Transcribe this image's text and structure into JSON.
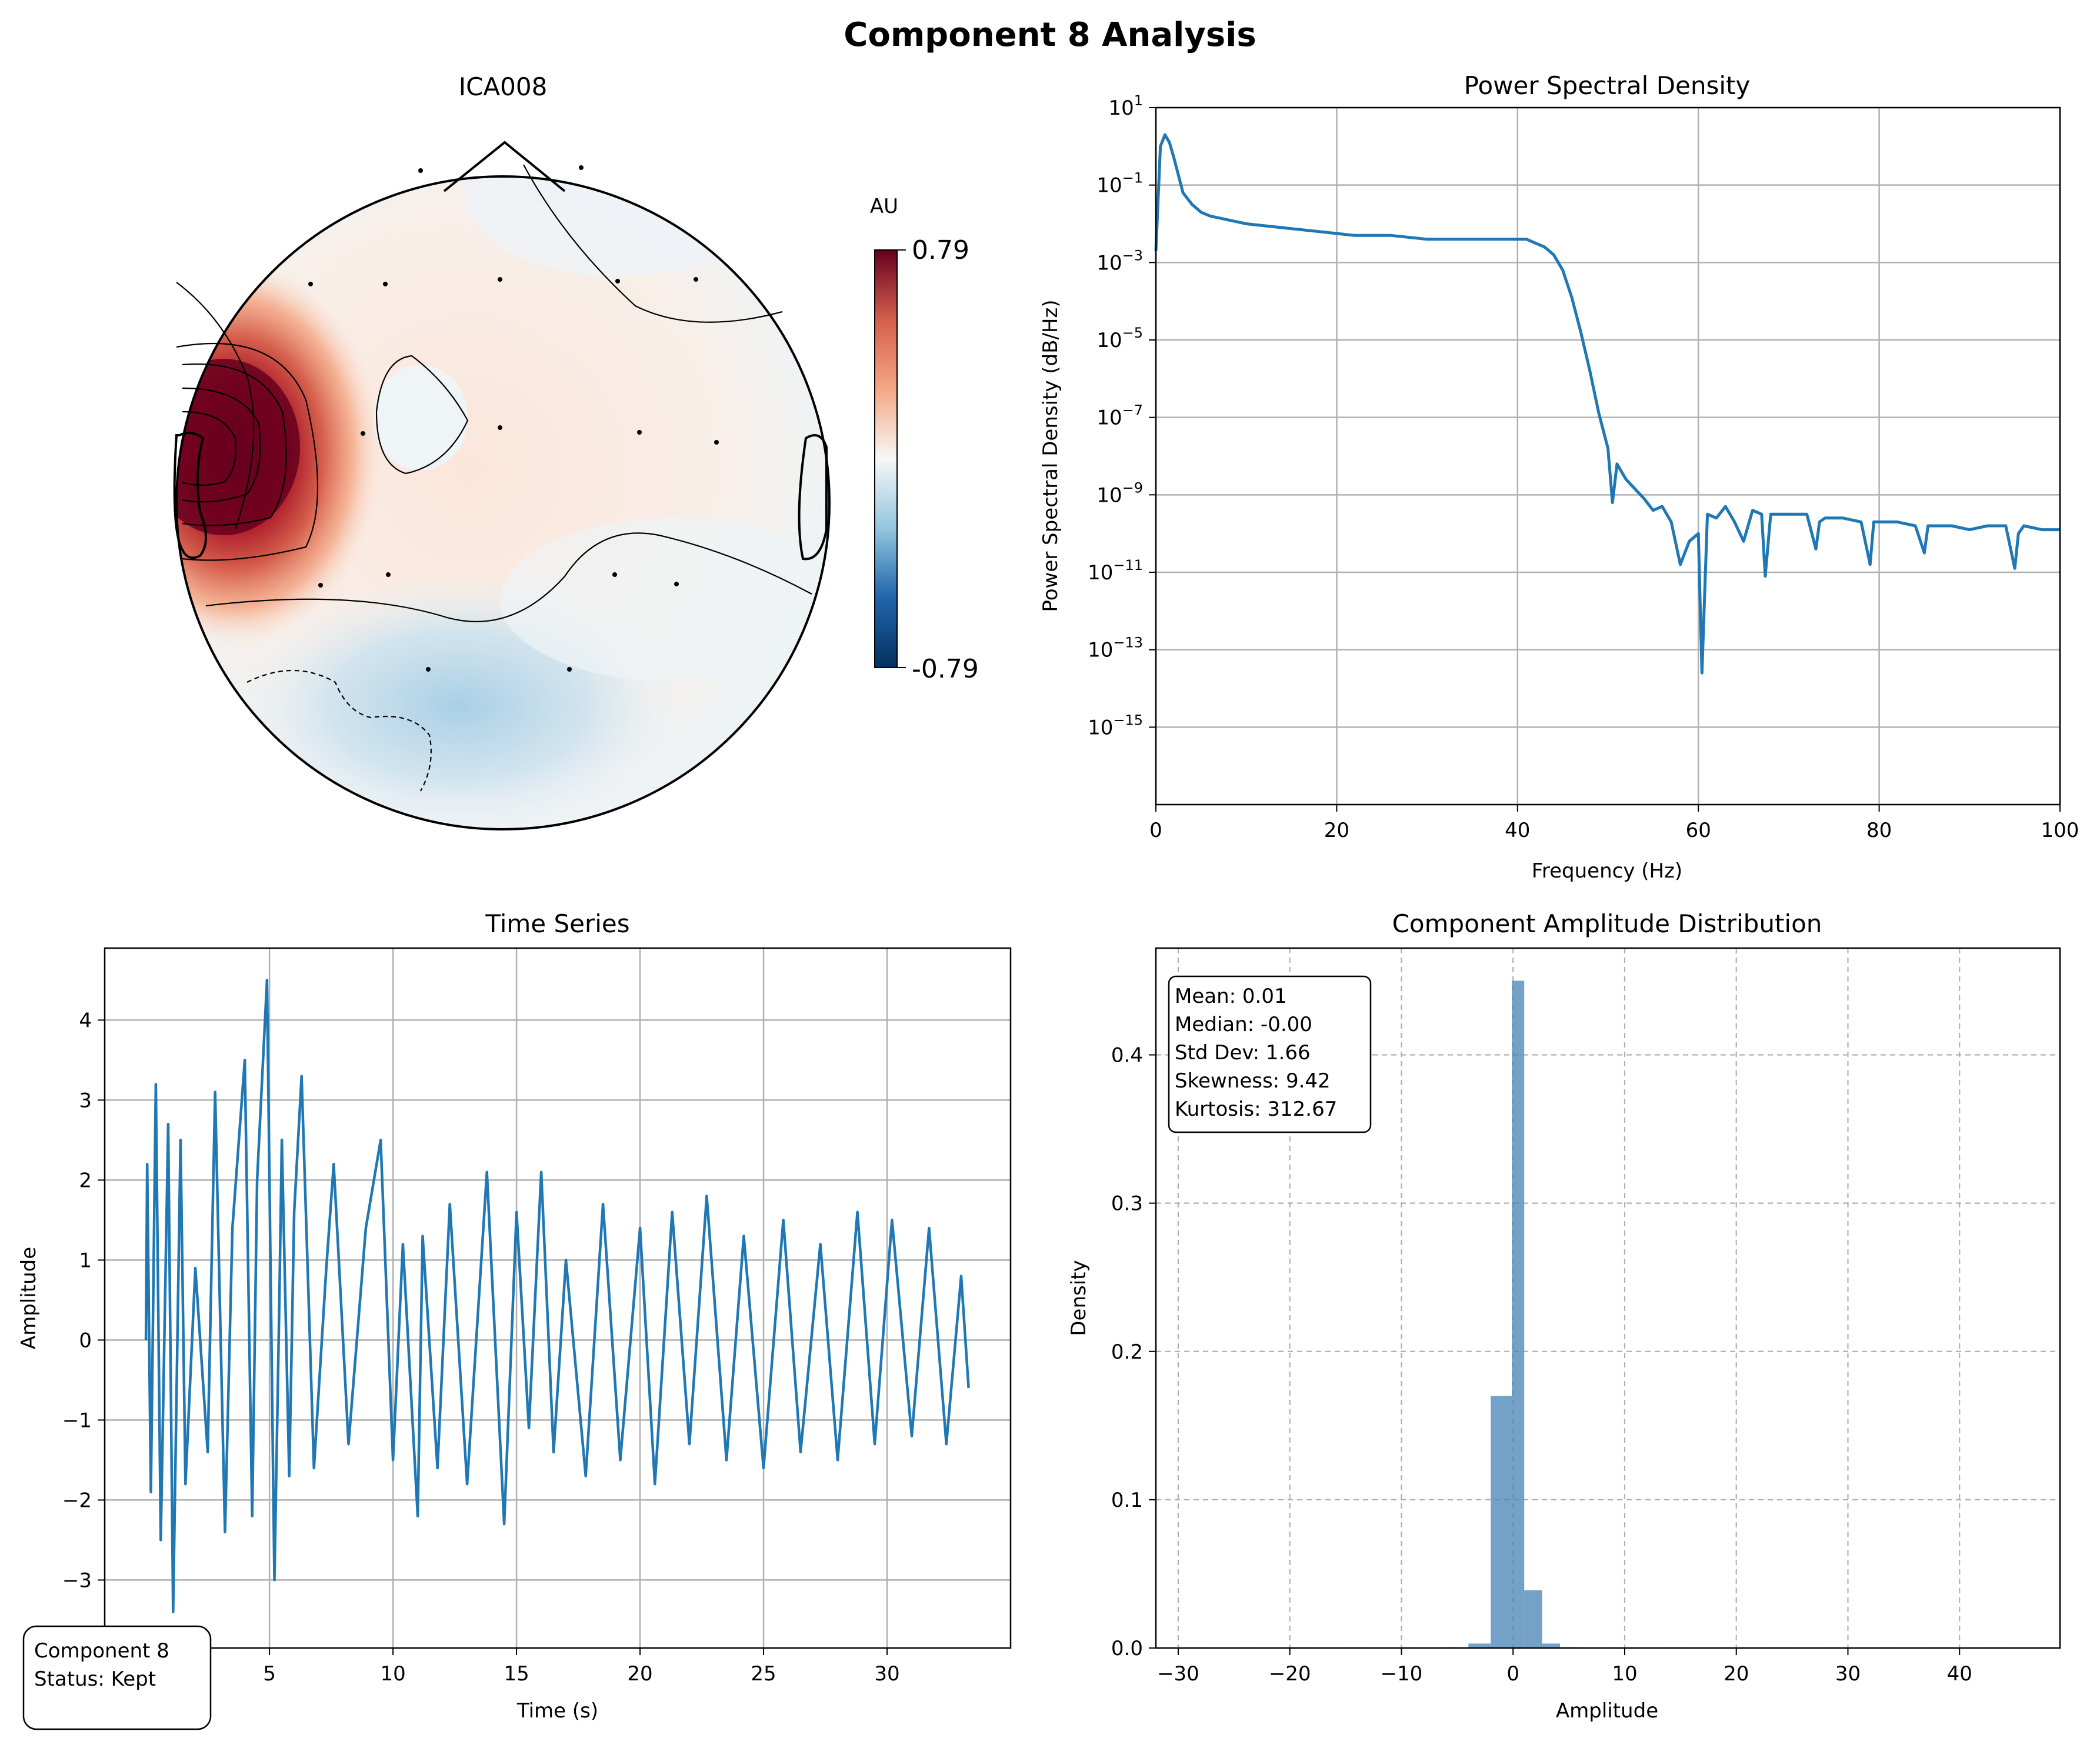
{
  "figure": {
    "title": "Component 8 Analysis"
  },
  "chart_data": [
    {
      "type": "heatmap",
      "title": "ICA008",
      "colorbar": {
        "label": "AU",
        "max_label": "0.79",
        "min_label": "-0.79",
        "vmin": -0.79,
        "vmax": 0.79,
        "colormap": [
          "#053061",
          "#2166ac",
          "#92c5de",
          "#f7f7f7",
          "#f4a582",
          "#d6604d",
          "#67001f"
        ]
      },
      "description_values": {
        "hotspot": "left-temporal",
        "hotspot_sign": "positive"
      }
    },
    {
      "type": "line",
      "title": "Power Spectral Density",
      "xlabel": "Frequency (Hz)",
      "ylabel": "Power Spectral Density (dB/Hz)",
      "xlim": [
        0,
        100
      ],
      "ylim_exp": [
        -17,
        1
      ],
      "yscale": "log",
      "xticks": [
        "0",
        "20",
        "40",
        "60",
        "80",
        "100"
      ],
      "yticks_exp": [
        "1",
        "-1",
        "-3",
        "-5",
        "-7",
        "-9",
        "-11",
        "-13",
        "-15"
      ],
      "grid": true,
      "color": "#1f77b4",
      "series": [
        {
          "x": [
            0,
            0.5,
            1,
            1.5,
            2,
            3,
            4,
            5,
            6,
            8,
            10,
            14,
            18,
            22,
            26,
            30,
            34,
            38,
            41,
            42,
            43,
            44,
            45,
            46,
            47,
            48,
            49,
            50,
            50.5,
            51,
            52,
            54,
            55,
            56,
            57,
            58,
            59,
            60,
            60.4,
            61,
            62,
            63,
            64,
            65,
            66,
            67,
            67.4,
            68,
            70,
            72,
            73,
            73.4,
            74,
            76,
            78,
            79,
            79.4,
            80,
            82,
            84,
            85,
            85.4,
            86,
            88,
            90,
            92,
            94,
            95,
            95.4,
            96,
            98,
            100
          ],
          "log10_y": [
            -2.7,
            0.0,
            0.3,
            0.1,
            -0.3,
            -1.2,
            -1.5,
            -1.7,
            -1.8,
            -1.9,
            -2.0,
            -2.1,
            -2.2,
            -2.3,
            -2.3,
            -2.4,
            -2.4,
            -2.4,
            -2.4,
            -2.5,
            -2.6,
            -2.8,
            -3.2,
            -3.9,
            -4.8,
            -5.8,
            -6.9,
            -7.8,
            -9.2,
            -8.2,
            -8.6,
            -9.1,
            -9.4,
            -9.3,
            -9.7,
            -10.8,
            -10.2,
            -10.0,
            -13.6,
            -9.5,
            -9.6,
            -9.3,
            -9.7,
            -10.2,
            -9.4,
            -9.5,
            -11.1,
            -9.5,
            -9.5,
            -9.5,
            -10.4,
            -9.7,
            -9.6,
            -9.6,
            -9.7,
            -10.8,
            -9.7,
            -9.7,
            -9.7,
            -9.8,
            -10.5,
            -9.8,
            -9.8,
            -9.8,
            -9.9,
            -9.8,
            -9.8,
            -10.9,
            -10.0,
            -9.8,
            -9.9,
            -9.9
          ]
        }
      ]
    },
    {
      "type": "line",
      "title": "Time Series",
      "xlabel": "Time (s)",
      "ylabel": "Amplitude",
      "xlim": [
        -1.67,
        35
      ],
      "ylim": [
        -3.85,
        4.9
      ],
      "xticks": [
        "5",
        "10",
        "15",
        "20",
        "25",
        "30"
      ],
      "yticks": [
        "4",
        "3",
        "2",
        "1",
        "0",
        "−1",
        "−2",
        "−3"
      ],
      "grid": true,
      "color": "#1f77b4",
      "series": [
        {
          "x": [
            0,
            0.05,
            0.2,
            0.4,
            0.6,
            0.9,
            1.1,
            1.4,
            1.6,
            2.0,
            2.5,
            2.8,
            3.2,
            3.5,
            4.0,
            4.3,
            4.5,
            4.9,
            5.2,
            5.4,
            5.5,
            5.8,
            6.0,
            6.3,
            6.8,
            7.3,
            7.6,
            8.2,
            8.9,
            9.5,
            10.0,
            10.4,
            11.0,
            11.2,
            11.8,
            12.3,
            13.0,
            13.8,
            14.5,
            15.0,
            15.5,
            16.0,
            16.5,
            17.0,
            17.8,
            18.5,
            19.2,
            20.0,
            20.6,
            21.3,
            22.0,
            22.7,
            23.5,
            24.2,
            25.0,
            25.8,
            26.5,
            27.3,
            28.0,
            28.8,
            29.5,
            30.2,
            31.0,
            31.7,
            32.4,
            33.0,
            33.3
          ],
          "y": [
            0.0,
            2.2,
            -1.9,
            3.2,
            -2.5,
            2.7,
            -3.4,
            2.5,
            -1.8,
            0.9,
            -1.4,
            3.1,
            -2.4,
            1.4,
            3.5,
            -2.2,
            2.0,
            4.5,
            -3.0,
            0.5,
            2.5,
            -1.7,
            1.6,
            3.3,
            -1.6,
            0.9,
            2.2,
            -1.3,
            1.4,
            2.5,
            -1.5,
            1.2,
            -2.2,
            1.3,
            -1.6,
            1.7,
            -1.8,
            2.1,
            -2.3,
            1.6,
            -1.1,
            2.1,
            -1.4,
            1.0,
            -1.7,
            1.7,
            -1.5,
            1.4,
            -1.8,
            1.6,
            -1.3,
            1.8,
            -1.5,
            1.3,
            -1.6,
            1.5,
            -1.4,
            1.2,
            -1.5,
            1.6,
            -1.3,
            1.5,
            -1.2,
            1.4,
            -1.3,
            0.8,
            -0.6
          ]
        }
      ],
      "annotation": {
        "line1": "Component 8",
        "line2": "Status: Kept"
      }
    },
    {
      "type": "bar",
      "title": "Component Amplitude Distribution",
      "xlabel": "Amplitude",
      "ylabel": "Density",
      "xlim": [
        -32,
        49
      ],
      "ylim": [
        0,
        0.472
      ],
      "xticks": [
        "−30",
        "−20",
        "−10",
        "0",
        "10",
        "20",
        "30",
        "40"
      ],
      "yticks": [
        "0.0",
        "0.1",
        "0.2",
        "0.3",
        "0.4"
      ],
      "grid": "dashed",
      "color": "#4682b4",
      "bins": [
        {
          "x0": -6.0,
          "x1": -4.0,
          "density": 0.0006
        },
        {
          "x0": -4.0,
          "x1": -2.0,
          "density": 0.003
        },
        {
          "x0": -2.0,
          "x1": -0.1,
          "density": 0.17
        },
        {
          "x0": -0.1,
          "x1": 1.0,
          "density": 0.45
        },
        {
          "x0": 1.0,
          "x1": 2.6,
          "density": 0.039
        },
        {
          "x0": 2.6,
          "x1": 4.2,
          "density": 0.003
        },
        {
          "x0": 4.2,
          "x1": 6.0,
          "density": 0.0006
        }
      ],
      "stats": {
        "mean": "Mean: 0.01",
        "median": "Median: -0.00",
        "std": "Std Dev: 1.66",
        "skew": "Skewness: 9.42",
        "kurt": "Kurtosis: 312.67"
      }
    }
  ]
}
